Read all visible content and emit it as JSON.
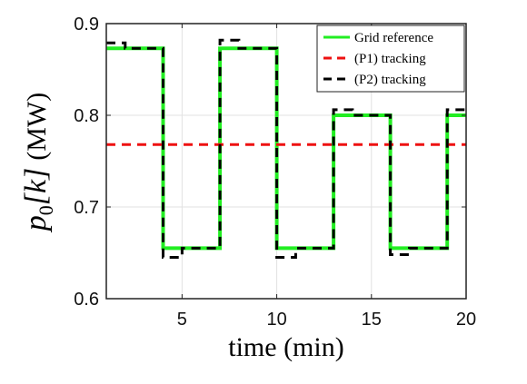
{
  "chart_data": {
    "type": "line",
    "xlabel": "time (min)",
    "ylabel_main": "p",
    "ylabel_sub": "0",
    "ylabel_bracket": "[k]",
    "ylabel_unit": "(MW)",
    "xlim": [
      1,
      20
    ],
    "ylim": [
      0.6,
      0.9
    ],
    "xticks": [
      5,
      10,
      15,
      20
    ],
    "yticks": [
      0.6,
      0.7,
      0.8,
      0.9
    ],
    "ytick_labels": [
      "0.6",
      "0.7",
      "0.8",
      "0.9"
    ],
    "grid": true,
    "legend_position": "top-right",
    "series": [
      {
        "name": "Grid reference",
        "style": "solid",
        "color": "#22ee22",
        "x": [
          1,
          4,
          4,
          7,
          7,
          10,
          10,
          13,
          13,
          16,
          16,
          19,
          19,
          20
        ],
        "y": [
          0.873,
          0.873,
          0.655,
          0.655,
          0.873,
          0.873,
          0.655,
          0.655,
          0.8,
          0.8,
          0.655,
          0.655,
          0.8,
          0.8
        ]
      },
      {
        "name": "(P1) tracking",
        "style": "dashed",
        "color": "#ee1111",
        "x": [
          1,
          20
        ],
        "y": [
          0.768,
          0.768
        ]
      },
      {
        "name": "(P2) tracking",
        "style": "dashed",
        "color": "#000000",
        "x": [
          1,
          2,
          2,
          4,
          4,
          5,
          5,
          7,
          7,
          8,
          8,
          10,
          10,
          11,
          11,
          13,
          13,
          14,
          14,
          16,
          16,
          17,
          17,
          19,
          19,
          20
        ],
        "y": [
          0.879,
          0.879,
          0.873,
          0.873,
          0.645,
          0.645,
          0.655,
          0.655,
          0.882,
          0.882,
          0.873,
          0.873,
          0.645,
          0.645,
          0.655,
          0.655,
          0.806,
          0.806,
          0.8,
          0.8,
          0.648,
          0.648,
          0.655,
          0.655,
          0.806,
          0.806
        ]
      }
    ]
  }
}
